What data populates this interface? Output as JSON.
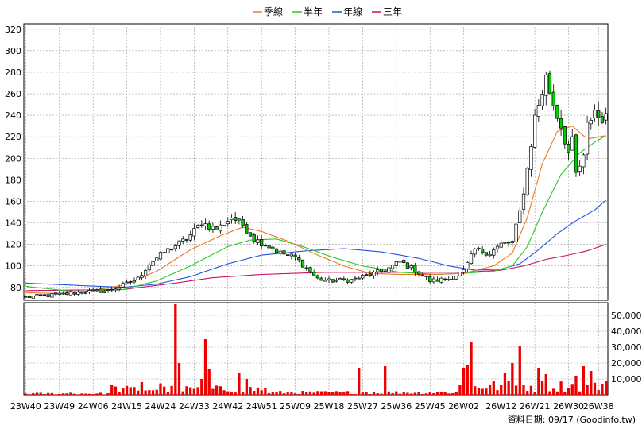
{
  "chart_data": {
    "type": "candlestick-with-volume",
    "legend": [
      {
        "label": "季線",
        "color": "#f07820"
      },
      {
        "label": "半年",
        "color": "#22cc22"
      },
      {
        "label": "年線",
        "color": "#2255dd"
      },
      {
        "label": "三年",
        "color": "#cc1166"
      }
    ],
    "price_axis": {
      "min": 68,
      "max": 325,
      "ticks": [
        80,
        100,
        120,
        140,
        160,
        180,
        200,
        220,
        240,
        260,
        280,
        300,
        320
      ]
    },
    "volume_axis": {
      "min": 0,
      "max": 58000,
      "ticks": [
        10000,
        20000,
        30000,
        40000,
        50000
      ],
      "tick_labels": [
        "10,000",
        "20,000",
        "30,000",
        "40,000",
        "50,000"
      ]
    },
    "x_axis": {
      "labels": [
        "23W40",
        "23W49",
        "24W06",
        "24W15",
        "24W24",
        "24W33",
        "24W42",
        "24W51",
        "25W09",
        "25W18",
        "25W27",
        "25W36",
        "25W45",
        "26W02",
        "26W12",
        "26W21",
        "26W30",
        "26W38"
      ],
      "label_index": [
        0,
        9,
        18,
        27,
        36,
        45,
        54,
        63,
        72,
        81,
        90,
        99,
        108,
        117,
        127,
        136,
        145,
        153
      ]
    },
    "anchors": {
      "close": [
        [
          0,
          71
        ],
        [
          8,
          73
        ],
        [
          16,
          76
        ],
        [
          22,
          77
        ],
        [
          26,
          82
        ],
        [
          30,
          88
        ],
        [
          33,
          102
        ],
        [
          36,
          110
        ],
        [
          39,
          117
        ],
        [
          43,
          125
        ],
        [
          47,
          140
        ],
        [
          51,
          134
        ],
        [
          55,
          145
        ],
        [
          58,
          138
        ],
        [
          61,
          125
        ],
        [
          65,
          118
        ],
        [
          68,
          112
        ],
        [
          72,
          108
        ],
        [
          75,
          98
        ],
        [
          78,
          88
        ],
        [
          81,
          86
        ],
        [
          87,
          87
        ],
        [
          92,
          92
        ],
        [
          96,
          96
        ],
        [
          100,
          104
        ],
        [
          104,
          96
        ],
        [
          108,
          86
        ],
        [
          113,
          88
        ],
        [
          117,
          95
        ],
        [
          120,
          115
        ],
        [
          124,
          112
        ],
        [
          127,
          120
        ],
        [
          130,
          122
        ],
        [
          132,
          150
        ],
        [
          134,
          190
        ],
        [
          136,
          238
        ],
        [
          138,
          262
        ],
        [
          139,
          275
        ],
        [
          141,
          250
        ],
        [
          143,
          230
        ],
        [
          145,
          205
        ],
        [
          146,
          215
        ],
        [
          147,
          185
        ],
        [
          149,
          200
        ],
        [
          150,
          230
        ],
        [
          152,
          245
        ],
        [
          153,
          238
        ],
        [
          155,
          237
        ]
      ],
      "ma_quarter": [
        [
          0,
          75
        ],
        [
          13,
          74
        ],
        [
          26,
          82
        ],
        [
          35,
          95
        ],
        [
          44,
          115
        ],
        [
          52,
          128
        ],
        [
          58,
          136
        ],
        [
          63,
          132
        ],
        [
          70,
          123
        ],
        [
          78,
          110
        ],
        [
          85,
          100
        ],
        [
          92,
          93
        ],
        [
          100,
          92
        ],
        [
          108,
          92
        ],
        [
          117,
          93
        ],
        [
          125,
          100
        ],
        [
          130,
          112
        ],
        [
          134,
          145
        ],
        [
          138,
          195
        ],
        [
          142,
          225
        ],
        [
          146,
          230
        ],
        [
          150,
          218
        ],
        [
          155,
          221
        ]
      ],
      "ma_halfyear": [
        [
          0,
          81
        ],
        [
          13,
          76
        ],
        [
          26,
          78
        ],
        [
          35,
          86
        ],
        [
          44,
          100
        ],
        [
          54,
          118
        ],
        [
          60,
          124
        ],
        [
          67,
          125
        ],
        [
          74,
          118
        ],
        [
          82,
          108
        ],
        [
          90,
          100
        ],
        [
          100,
          94
        ],
        [
          110,
          92
        ],
        [
          117,
          93
        ],
        [
          125,
          95
        ],
        [
          130,
          100
        ],
        [
          134,
          118
        ],
        [
          138,
          150
        ],
        [
          143,
          185
        ],
        [
          148,
          205
        ],
        [
          152,
          215
        ],
        [
          155,
          221
        ]
      ],
      "ma_year": [
        [
          0,
          84
        ],
        [
          13,
          82
        ],
        [
          26,
          80
        ],
        [
          35,
          83
        ],
        [
          44,
          90
        ],
        [
          54,
          102
        ],
        [
          63,
          110
        ],
        [
          75,
          114
        ],
        [
          85,
          116
        ],
        [
          95,
          113
        ],
        [
          105,
          107
        ],
        [
          113,
          100
        ],
        [
          120,
          96
        ],
        [
          127,
          97
        ],
        [
          132,
          102
        ],
        [
          137,
          115
        ],
        [
          142,
          130
        ],
        [
          147,
          142
        ],
        [
          152,
          152
        ],
        [
          155,
          161
        ]
      ],
      "ma_3year": [
        [
          0,
          77
        ],
        [
          26,
          78
        ],
        [
          40,
          84
        ],
        [
          50,
          89
        ],
        [
          63,
          92
        ],
        [
          80,
          94
        ],
        [
          100,
          94
        ],
        [
          117,
          94
        ],
        [
          127,
          96
        ],
        [
          133,
          100
        ],
        [
          139,
          106
        ],
        [
          145,
          110
        ],
        [
          150,
          114
        ],
        [
          155,
          120
        ]
      ],
      "volume_spikes": [
        [
          12,
          1300
        ],
        [
          23,
          6500
        ],
        [
          31,
          8000
        ],
        [
          36,
          7200
        ],
        [
          40,
          57000
        ],
        [
          41,
          20000
        ],
        [
          47,
          10000
        ],
        [
          48,
          35000
        ],
        [
          49,
          16000
        ],
        [
          57,
          14000
        ],
        [
          59,
          10000
        ],
        [
          89,
          17000
        ],
        [
          96,
          18000
        ],
        [
          117,
          17000
        ],
        [
          118,
          19000
        ],
        [
          119,
          33000
        ],
        [
          128,
          14000
        ],
        [
          130,
          20000
        ],
        [
          132,
          31000
        ],
        [
          137,
          17000
        ],
        [
          139,
          13000
        ],
        [
          147,
          12000
        ],
        [
          149,
          18000
        ],
        [
          151,
          15000
        ]
      ]
    }
  },
  "footer": {
    "text": "資料日期: 09/17  (Goodinfo.tw)"
  }
}
